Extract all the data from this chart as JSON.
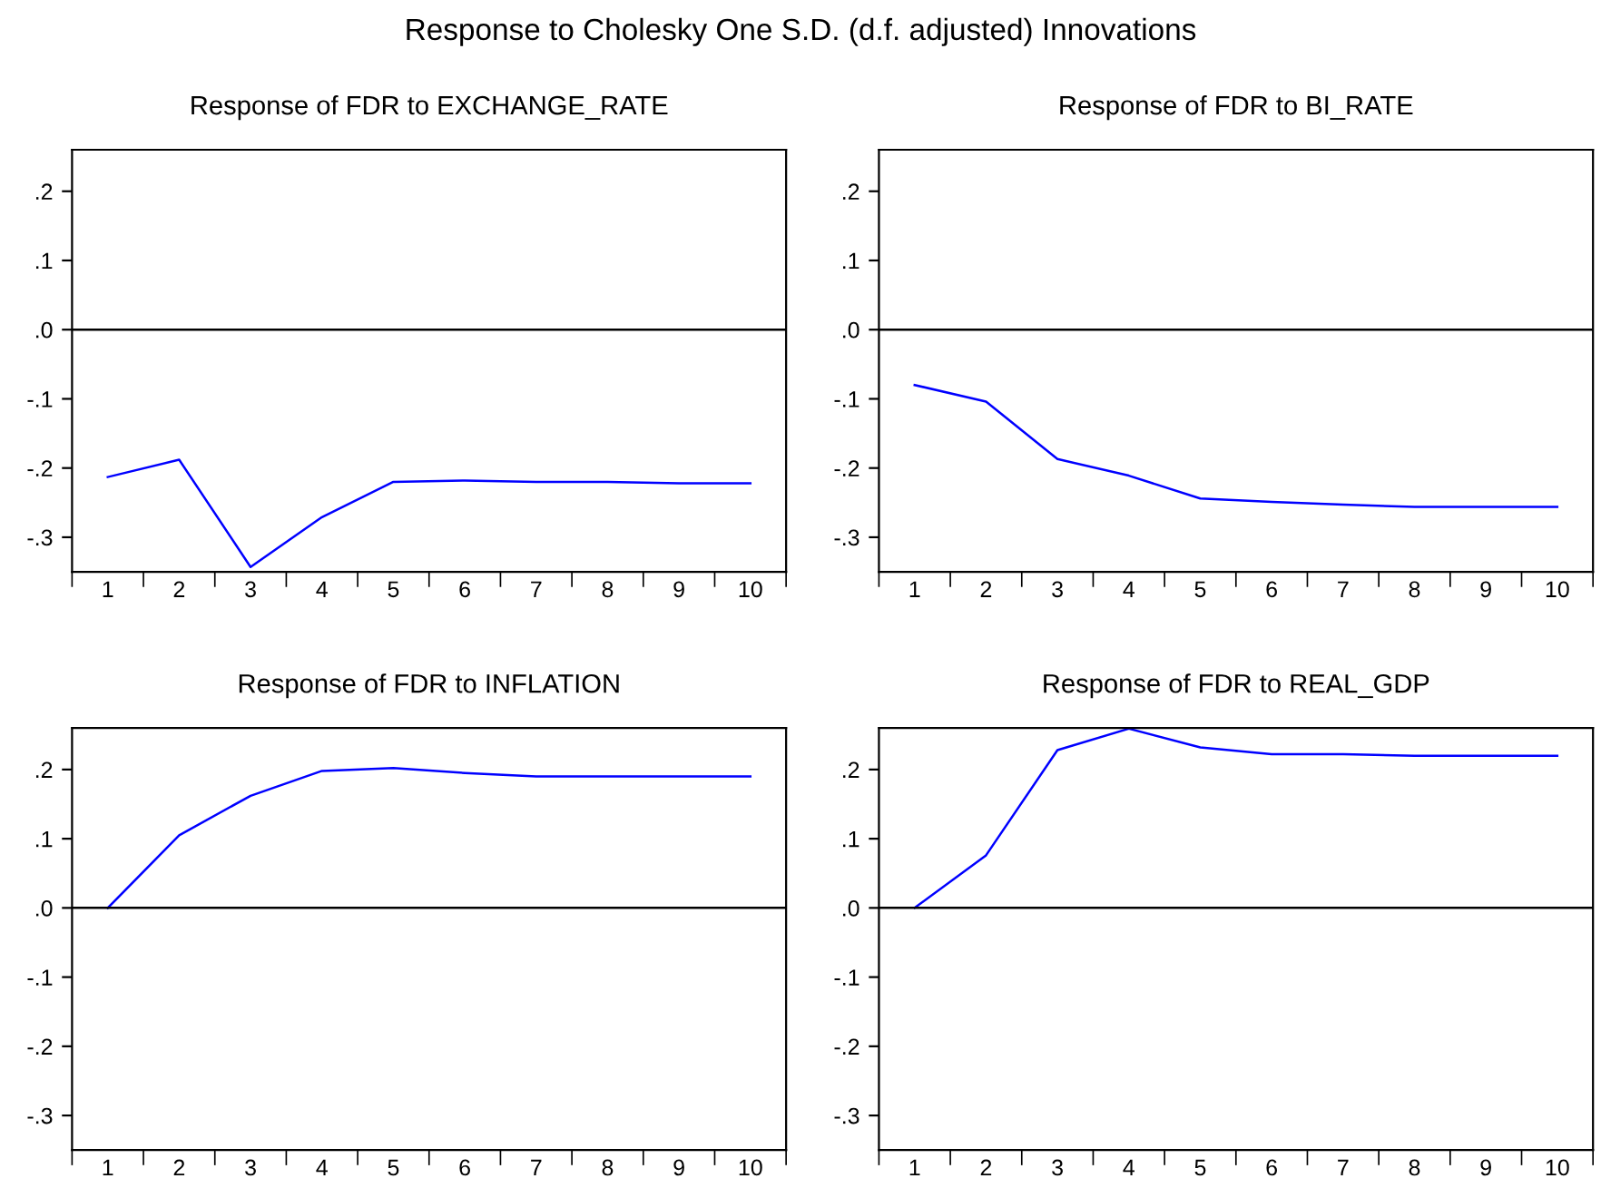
{
  "chart_data": [
    {
      "type": "line",
      "title": "Response of FDR to EXCHANGE_RATE",
      "annotations": [
        "Response to Cholesky One S.D. (d.f. adjusted) Innovations"
      ],
      "categories": [
        "1",
        "2",
        "3",
        "4",
        "5",
        "6",
        "7",
        "8",
        "9",
        "10"
      ],
      "series": [
        {
          "color": "#0000ff",
          "values": [
            -0.213,
            -0.188,
            -0.343,
            -0.271,
            -0.22,
            -0.218,
            -0.22,
            -0.22,
            -0.222,
            -0.222
          ]
        }
      ],
      "ylim": [
        -0.35,
        0.26
      ],
      "yticks": [
        {
          "value": -0.3,
          "label": "-.3"
        },
        {
          "value": -0.2,
          "label": "-.2"
        },
        {
          "value": -0.1,
          "label": "-.1"
        },
        {
          "value": 0,
          "label": ".0"
        },
        {
          "value": 0.1,
          "label": ".1"
        },
        {
          "value": 0.2,
          "label": ".2"
        }
      ],
      "ref_lines": [
        {
          "axis": "y",
          "value": 0,
          "color": "#000000"
        }
      ],
      "grid": false,
      "legend": false
    },
    {
      "type": "line",
      "title": "Response of FDR to BI_RATE",
      "categories": [
        "1",
        "2",
        "3",
        "4",
        "5",
        "6",
        "7",
        "8",
        "9",
        "10"
      ],
      "series": [
        {
          "color": "#0000ff",
          "values": [
            -0.08,
            -0.104,
            -0.187,
            -0.211,
            -0.244,
            -0.249,
            -0.253,
            -0.256,
            -0.256,
            -0.256
          ]
        }
      ],
      "ylim": [
        -0.35,
        0.26
      ],
      "yticks": [
        {
          "value": -0.3,
          "label": "-.3"
        },
        {
          "value": -0.2,
          "label": "-.2"
        },
        {
          "value": -0.1,
          "label": "-.1"
        },
        {
          "value": 0,
          "label": ".0"
        },
        {
          "value": 0.1,
          "label": ".1"
        },
        {
          "value": 0.2,
          "label": ".2"
        }
      ],
      "ref_lines": [
        {
          "axis": "y",
          "value": 0,
          "color": "#000000"
        }
      ],
      "grid": false,
      "legend": false
    },
    {
      "type": "line",
      "title": "Response of FDR to INFLATION",
      "categories": [
        "1",
        "2",
        "3",
        "4",
        "5",
        "6",
        "7",
        "8",
        "9",
        "10"
      ],
      "series": [
        {
          "color": "#0000ff",
          "values": [
            0.0,
            0.105,
            0.162,
            0.198,
            0.202,
            0.195,
            0.19,
            0.19,
            0.19,
            0.19
          ]
        }
      ],
      "ylim": [
        -0.35,
        0.26
      ],
      "yticks": [
        {
          "value": -0.3,
          "label": "-.3"
        },
        {
          "value": -0.2,
          "label": "-.2"
        },
        {
          "value": -0.1,
          "label": "-.1"
        },
        {
          "value": 0,
          "label": ".0"
        },
        {
          "value": 0.1,
          "label": ".1"
        },
        {
          "value": 0.2,
          "label": ".2"
        }
      ],
      "ref_lines": [
        {
          "axis": "y",
          "value": 0,
          "color": "#000000"
        }
      ],
      "grid": false,
      "legend": false
    },
    {
      "type": "line",
      "title": "Response of FDR to REAL_GDP",
      "categories": [
        "1",
        "2",
        "3",
        "4",
        "5",
        "6",
        "7",
        "8",
        "9",
        "10"
      ],
      "series": [
        {
          "color": "#0000ff",
          "values": [
            0.0,
            0.076,
            0.228,
            0.259,
            0.232,
            0.222,
            0.222,
            0.22,
            0.22,
            0.22
          ]
        }
      ],
      "ylim": [
        -0.35,
        0.26
      ],
      "yticks": [
        {
          "value": -0.3,
          "label": "-.3"
        },
        {
          "value": -0.2,
          "label": "-.2"
        },
        {
          "value": -0.1,
          "label": "-.1"
        },
        {
          "value": 0,
          "label": ".0"
        },
        {
          "value": 0.1,
          "label": ".1"
        },
        {
          "value": 0.2,
          "label": ".2"
        }
      ],
      "ref_lines": [
        {
          "axis": "y",
          "value": 0,
          "color": "#000000"
        }
      ],
      "grid": false,
      "legend": false
    }
  ]
}
